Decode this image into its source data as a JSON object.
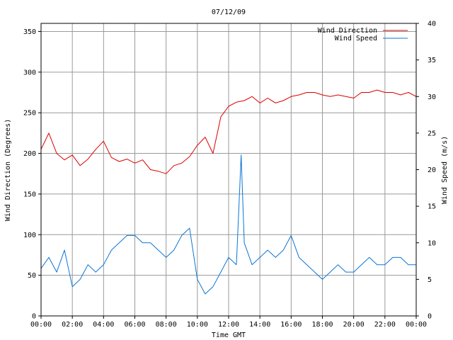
{
  "chart_data": {
    "type": "line",
    "title": "07/12/09",
    "xlabel": "Time GMT",
    "ylabel_left": "Wind Direction (Degrees)",
    "ylabel_right": "Wind Speed (m/s)",
    "x_range_hours": [
      0,
      24
    ],
    "x_tick_labels": [
      "00:00",
      "02:00",
      "04:00",
      "06:00",
      "08:00",
      "10:00",
      "12:00",
      "14:00",
      "16:00",
      "18:00",
      "20:00",
      "22:00",
      "00:00"
    ],
    "y_left_range": [
      0,
      360
    ],
    "y_left_ticks": [
      0,
      50,
      100,
      150,
      200,
      250,
      300,
      350
    ],
    "y_right_range": [
      0,
      40
    ],
    "y_right_ticks": [
      0,
      5,
      10,
      15,
      20,
      25,
      30,
      35,
      40
    ],
    "grid": true,
    "legend_position": "top-right",
    "colors": {
      "Wind Direction": "#dd0000",
      "Wind Speed": "#0a76d6",
      "grid": "#9a9a9a"
    },
    "series": [
      {
        "name": "Wind Direction",
        "axis": "left",
        "x": [
          0,
          0.5,
          1,
          1.5,
          2,
          2.5,
          3,
          3.5,
          4,
          4.5,
          5,
          5.5,
          6,
          6.5,
          7,
          7.5,
          8,
          8.5,
          9,
          9.5,
          10,
          10.5,
          11,
          11.5,
          12,
          12.5,
          13,
          13.5,
          14,
          14.5,
          15,
          15.5,
          16,
          16.5,
          17,
          17.5,
          18,
          18.5,
          19,
          19.5,
          20,
          20.5,
          21,
          21.5,
          22,
          22.5,
          23,
          23.5,
          24
        ],
        "values": [
          205,
          225,
          200,
          192,
          198,
          185,
          193,
          205,
          215,
          195,
          190,
          193,
          188,
          192,
          180,
          178,
          175,
          185,
          188,
          196,
          210,
          220,
          200,
          245,
          258,
          263,
          265,
          270,
          262,
          268,
          262,
          265,
          270,
          272,
          275,
          275,
          272,
          270,
          272,
          270,
          268,
          275,
          275,
          278,
          275,
          275,
          272,
          275,
          270
        ]
      },
      {
        "name": "Wind Speed",
        "axis": "right",
        "x": [
          0,
          0.5,
          1,
          1.5,
          2,
          2.5,
          3,
          3.5,
          4,
          4.5,
          5,
          5.5,
          6,
          6.5,
          7,
          7.5,
          8,
          8.5,
          9,
          9.5,
          10,
          10.5,
          11,
          11.5,
          12,
          12.5,
          12.8,
          13,
          13.5,
          14,
          14.5,
          15,
          15.5,
          16,
          16.5,
          17,
          17.5,
          18,
          18.5,
          19,
          19.5,
          20,
          20.5,
          21,
          21.5,
          22,
          22.5,
          23,
          23.5,
          24
        ],
        "values": [
          6.5,
          8,
          6,
          9,
          4,
          5,
          7,
          6,
          7,
          9,
          10,
          11,
          11,
          10,
          10,
          9,
          8,
          9,
          11,
          12,
          5,
          3,
          4,
          6,
          8,
          7,
          22,
          10,
          7,
          8,
          9,
          8,
          9,
          11,
          8,
          7,
          6,
          5,
          6,
          7,
          6,
          6,
          7,
          8,
          7,
          7,
          8,
          8,
          7,
          7
        ]
      }
    ]
  }
}
